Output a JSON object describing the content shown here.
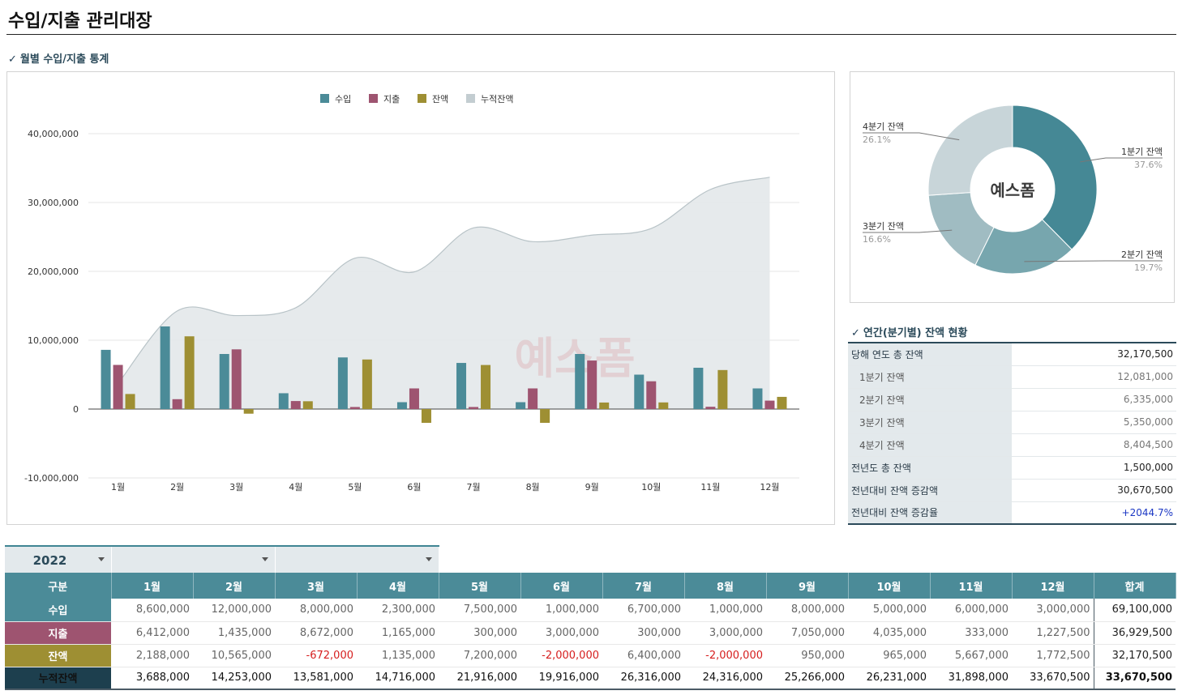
{
  "page": {
    "title": "수입/지출 관리대장"
  },
  "sections": {
    "monthly": "월별 수입/지출 통계",
    "annual": "연간(분기별) 잔액 현황",
    "check_mark": "✓"
  },
  "colors": {
    "income": "#4b8b98",
    "expense": "#9e5470",
    "balance": "#9e8f33",
    "cumulative": "#c3cdd1",
    "header": "#4b8b98",
    "cum_row": "#1d3f4e",
    "negative": "#d61e1e",
    "positive_rate": "#1a37c4"
  },
  "watermark": "예스폼",
  "chart_data": [
    {
      "type": "bar",
      "categories": [
        "1월",
        "2월",
        "3월",
        "4월",
        "5월",
        "6월",
        "7월",
        "8월",
        "9월",
        "10월",
        "11월",
        "12월"
      ],
      "series": [
        {
          "name": "수입",
          "values": [
            8600000,
            12000000,
            8000000,
            2300000,
            7500000,
            1000000,
            6700000,
            1000000,
            8000000,
            5000000,
            6000000,
            3000000
          ]
        },
        {
          "name": "지출",
          "values": [
            6412000,
            1435000,
            8672000,
            1165000,
            300000,
            3000000,
            300000,
            3000000,
            7050000,
            4035000,
            333000,
            1227500
          ]
        },
        {
          "name": "잔액",
          "values": [
            2188000,
            10565000,
            -672000,
            1135000,
            7200000,
            -2000000,
            6400000,
            -2000000,
            950000,
            965000,
            5667000,
            1772500
          ]
        },
        {
          "name": "누적잔액",
          "type": "area",
          "values": [
            3688000,
            14253000,
            13581000,
            14716000,
            21916000,
            19916000,
            26316000,
            24316000,
            25266000,
            26231000,
            31898000,
            33670500
          ]
        }
      ],
      "ylim": [
        -10000000,
        40000000
      ],
      "yticks": [
        "40,000,000",
        "30,000,000",
        "20,000,000",
        "10,000,000",
        "0",
        "-10,000,000"
      ],
      "legend_position": "top-center",
      "grid": true
    },
    {
      "type": "pie",
      "donut": true,
      "slices": [
        {
          "label": "1분기 잔액",
          "pct": "37.6%",
          "value": 37.6,
          "color": "#458895"
        },
        {
          "label": "2분기 잔액",
          "pct": "19.7%",
          "value": 19.7,
          "color": "#77a6ae"
        },
        {
          "label": "3분기 잔액",
          "pct": "16.6%",
          "value": 16.6,
          "color": "#a0bcc2"
        },
        {
          "label": "4분기 잔액",
          "pct": "26.1%",
          "value": 26.1,
          "color": "#c8d5d9"
        }
      ]
    }
  ],
  "summary": [
    {
      "label": "당해 연도 총 잔액",
      "value": "32,170,500",
      "sub": false
    },
    {
      "label": "1분기 잔액",
      "value": "12,081,000",
      "sub": true
    },
    {
      "label": "2분기 잔액",
      "value": "6,335,000",
      "sub": true
    },
    {
      "label": "3분기 잔액",
      "value": "5,350,000",
      "sub": true
    },
    {
      "label": "4분기 잔액",
      "value": "8,404,500",
      "sub": true
    },
    {
      "label": "전년도 총 잔액",
      "value": "1,500,000",
      "sub": false
    },
    {
      "label": "전년대비 잔액 증감액",
      "value": "30,670,500",
      "sub": false
    },
    {
      "label": "전년대비 잔액 증감율",
      "value": "+2044.7%",
      "sub": false
    }
  ],
  "filters": {
    "year": "2022",
    "filter2": "",
    "filter3": ""
  },
  "table": {
    "headers": [
      "구분",
      "1월",
      "2월",
      "3월",
      "4월",
      "5월",
      "6월",
      "7월",
      "8월",
      "9월",
      "10월",
      "11월",
      "12월",
      "합계"
    ],
    "rows": [
      {
        "label": "수입",
        "values": [
          "8,600,000",
          "12,000,000",
          "8,000,000",
          "2,300,000",
          "7,500,000",
          "1,000,000",
          "6,700,000",
          "1,000,000",
          "8,000,000",
          "5,000,000",
          "6,000,000",
          "3,000,000"
        ],
        "total": "69,100,000"
      },
      {
        "label": "지출",
        "values": [
          "6,412,000",
          "1,435,000",
          "8,672,000",
          "1,165,000",
          "300,000",
          "3,000,000",
          "300,000",
          "3,000,000",
          "7,050,000",
          "4,035,000",
          "333,000",
          "1,227,500"
        ],
        "total": "36,929,500"
      },
      {
        "label": "잔액",
        "values": [
          "2,188,000",
          "10,565,000",
          "-672,000",
          "1,135,000",
          "7,200,000",
          "-2,000,000",
          "6,400,000",
          "-2,000,000",
          "950,000",
          "965,000",
          "5,667,000",
          "1,772,500"
        ],
        "total": "32,170,500"
      },
      {
        "label": "누적잔액",
        "values": [
          "3,688,000",
          "14,253,000",
          "13,581,000",
          "14,716,000",
          "21,916,000",
          "19,916,000",
          "26,316,000",
          "24,316,000",
          "25,266,000",
          "26,231,000",
          "31,898,000",
          "33,670,500"
        ],
        "total": "33,670,500"
      }
    ]
  }
}
